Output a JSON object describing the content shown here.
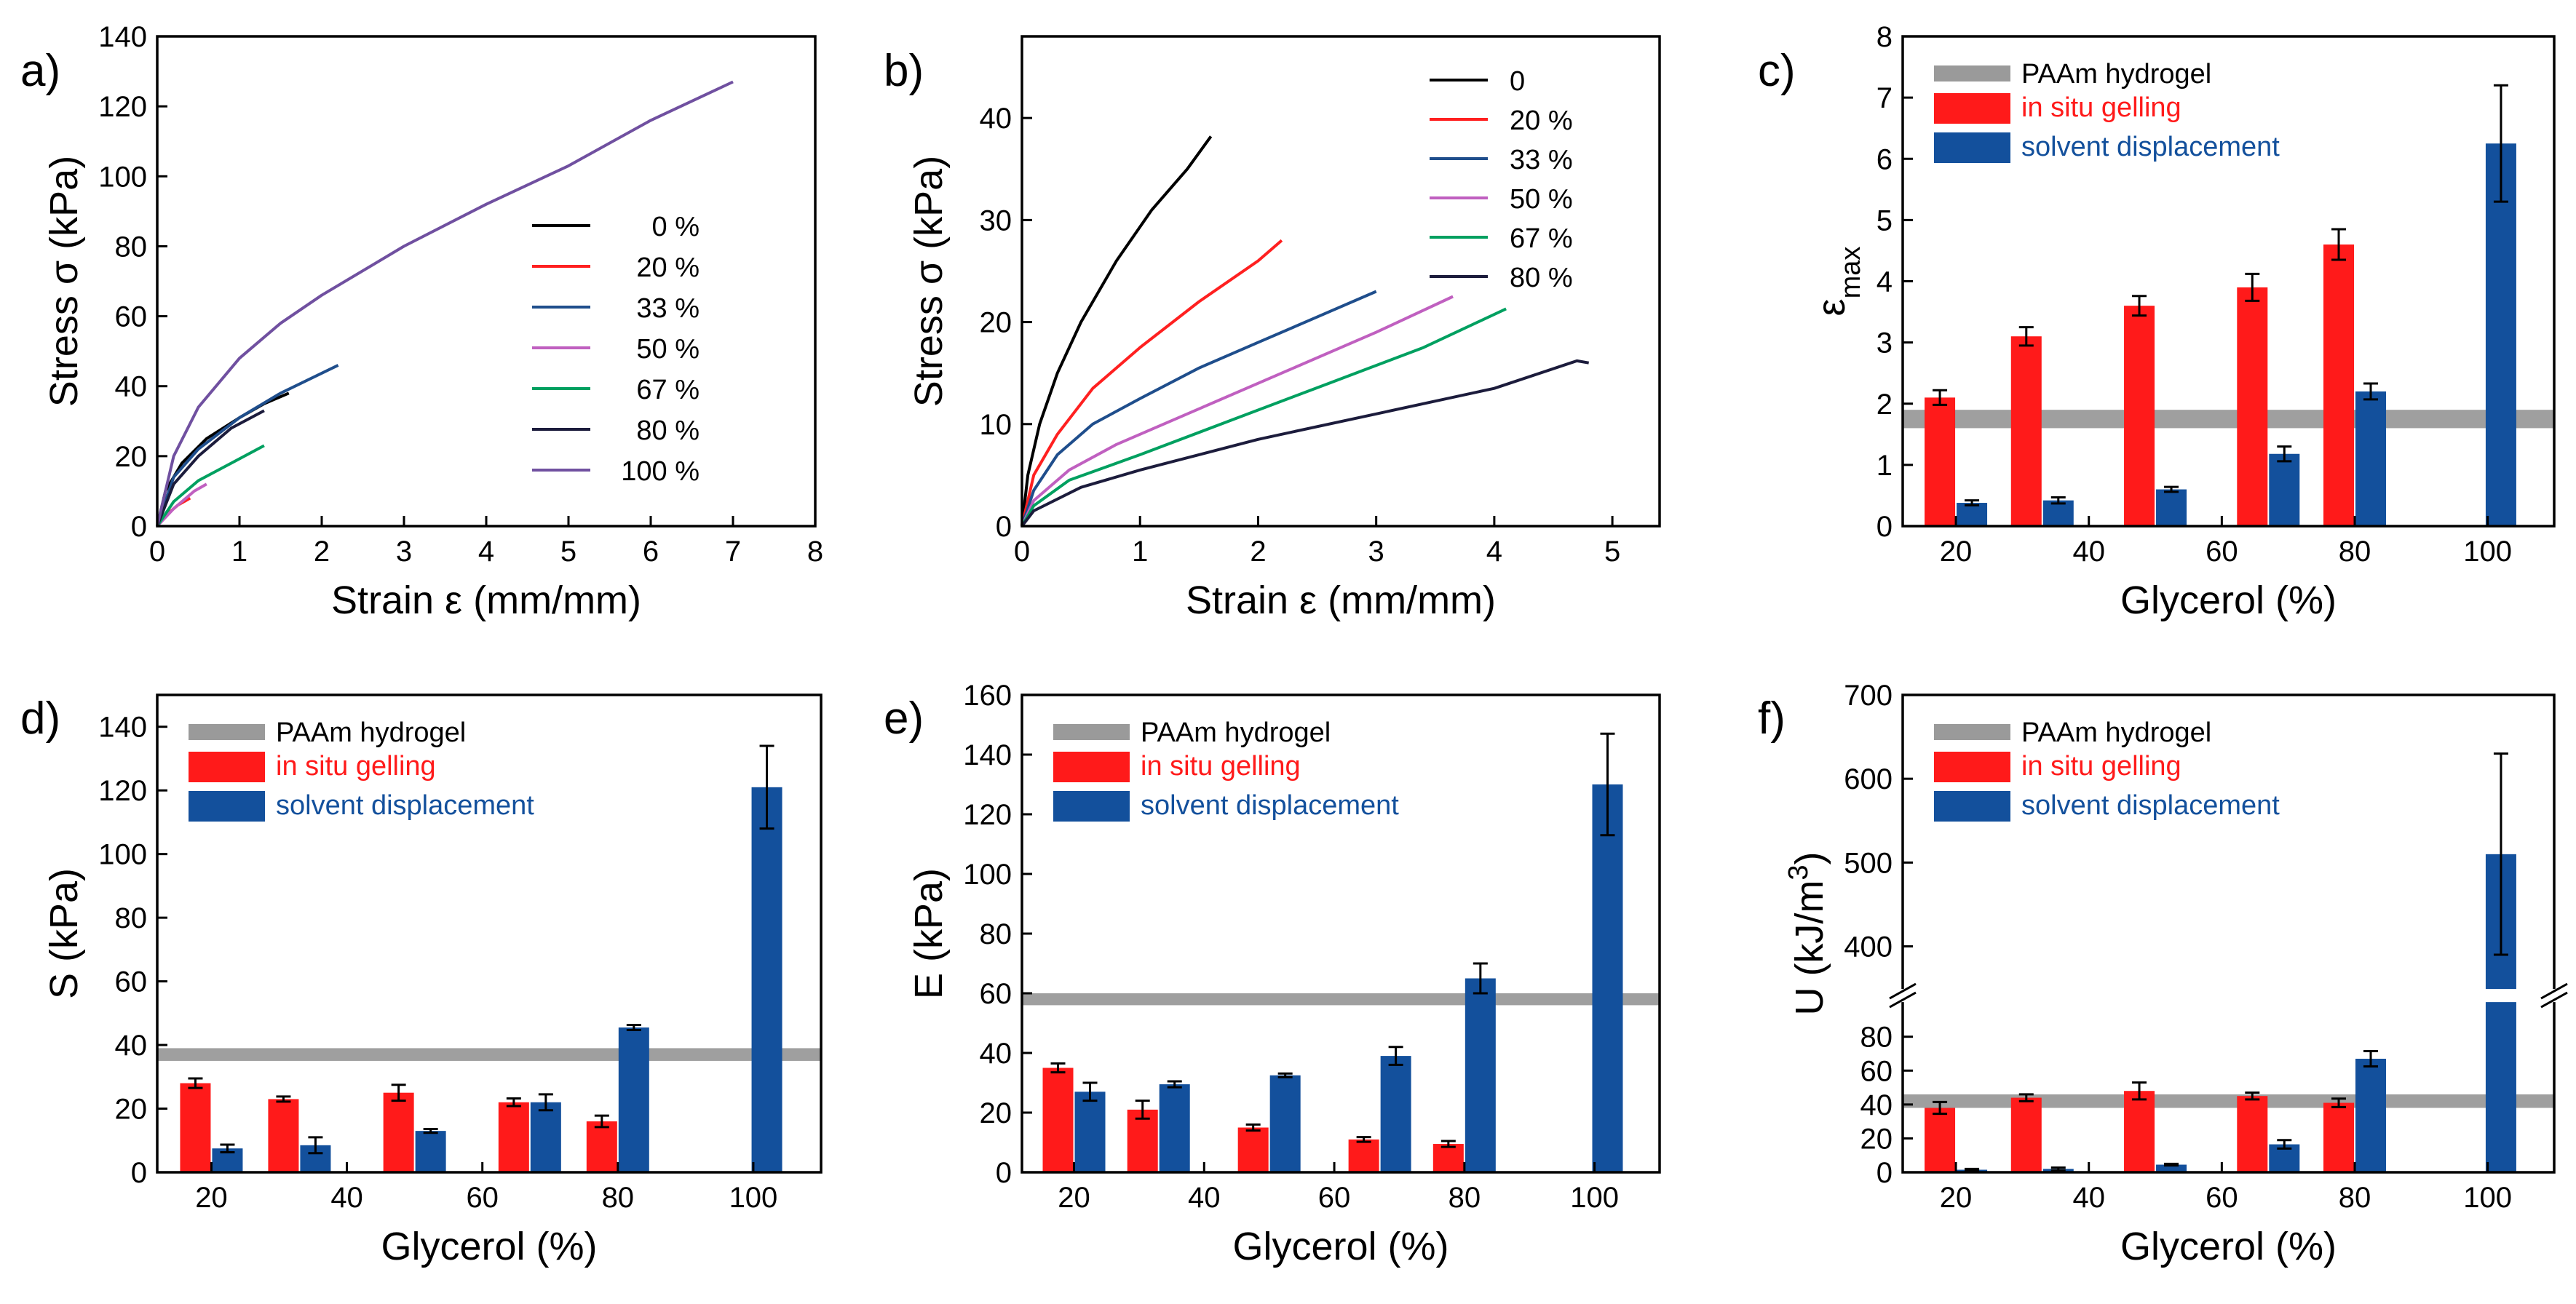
{
  "colors": {
    "red": "#ff1a1a",
    "blue": "#13509c",
    "gray": "#9a9a9a",
    "red_text": "#ff1a1a",
    "blue_text": "#13509c"
  },
  "chart_data": [
    {
      "id": "a",
      "panel_label": "a)",
      "type": "line",
      "xlabel": "Strain ε (mm/mm)",
      "ylabel": "Stress σ (kPa)",
      "xlim": [
        0,
        8
      ],
      "ylim": [
        0,
        140
      ],
      "xticks": [
        "0",
        "1",
        "2",
        "3",
        "4",
        "5",
        "6",
        "7",
        "8"
      ],
      "yticks": [
        "0",
        "20",
        "40",
        "60",
        "80",
        "100",
        "120",
        "140"
      ],
      "series": [
        {
          "name": "0 %",
          "color": "#000000",
          "x": [
            0,
            0.1,
            0.3,
            0.6,
            1.0,
            1.3,
            1.6
          ],
          "y": [
            0,
            10,
            18,
            25,
            31,
            35,
            38
          ]
        },
        {
          "name": "20 %",
          "color": "#ff2020",
          "x": [
            0,
            0.1,
            0.25,
            0.4
          ],
          "y": [
            0,
            3,
            6,
            8
          ]
        },
        {
          "name": "33 %",
          "color": "#1f4e8c",
          "x": [
            0,
            0.2,
            0.5,
            1.0,
            1.5,
            2.2
          ],
          "y": [
            0,
            14,
            22,
            31,
            38,
            46
          ]
        },
        {
          "name": "50 %",
          "color": "#c060c0",
          "x": [
            0,
            0.2,
            0.45,
            0.6
          ],
          "y": [
            0,
            5,
            10,
            12
          ]
        },
        {
          "name": "67 %",
          "color": "#00a060",
          "x": [
            0,
            0.2,
            0.5,
            0.9,
            1.3
          ],
          "y": [
            0,
            7,
            13,
            18,
            23
          ]
        },
        {
          "name": "80 %",
          "color": "#1c1c3c",
          "x": [
            0,
            0.2,
            0.5,
            0.9,
            1.3
          ],
          "y": [
            0,
            12,
            20,
            28,
            33
          ]
        },
        {
          "name": "100 %",
          "color": "#7050a0",
          "x": [
            0,
            0.2,
            0.5,
            1.0,
            1.5,
            2.0,
            3.0,
            4.0,
            5.0,
            6.0,
            7.0
          ],
          "y": [
            0,
            20,
            34,
            48,
            58,
            66,
            80,
            92,
            103,
            116,
            127
          ]
        }
      ]
    },
    {
      "id": "b",
      "panel_label": "b)",
      "type": "line",
      "xlabel": "Strain ε (mm/mm)",
      "ylabel": "Stress σ (kPa)",
      "xlim": [
        0,
        5.4
      ],
      "ylim": [
        0,
        48
      ],
      "xticks": [
        "0",
        "1",
        "2",
        "3",
        "4",
        "5"
      ],
      "yticks": [
        "0",
        "10",
        "20",
        "30",
        "40"
      ],
      "series": [
        {
          "name": "0",
          "color": "#000000",
          "x": [
            0,
            0.05,
            0.15,
            0.3,
            0.5,
            0.8,
            1.1,
            1.4,
            1.6
          ],
          "y": [
            0,
            5,
            10,
            15,
            20,
            26,
            31,
            35,
            38.2
          ]
        },
        {
          "name": "20 %",
          "color": "#ff2020",
          "x": [
            0,
            0.1,
            0.3,
            0.6,
            1.0,
            1.5,
            2.0,
            2.2
          ],
          "y": [
            0,
            5,
            9,
            13.5,
            17.5,
            22,
            26,
            28
          ]
        },
        {
          "name": "33 %",
          "color": "#1f4e8c",
          "x": [
            0,
            0.1,
            0.3,
            0.6,
            1.0,
            1.5,
            2.0,
            2.5,
            3.0
          ],
          "y": [
            0,
            3.5,
            7,
            10,
            12.5,
            15.5,
            18,
            20.5,
            23
          ]
        },
        {
          "name": "50 %",
          "color": "#c060c0",
          "x": [
            0,
            0.1,
            0.4,
            0.8,
            1.5,
            2.2,
            3.0,
            3.65
          ],
          "y": [
            0,
            2.5,
            5.5,
            8,
            11.5,
            15,
            19,
            22.5
          ]
        },
        {
          "name": "67 %",
          "color": "#00a060",
          "x": [
            0,
            0.1,
            0.4,
            1.0,
            1.8,
            2.6,
            3.4,
            4.1
          ],
          "y": [
            0,
            2,
            4.5,
            7,
            10.5,
            14,
            17.5,
            21.3
          ]
        },
        {
          "name": "80 %",
          "color": "#1c1c3c",
          "x": [
            0,
            0.1,
            0.5,
            1.0,
            2.0,
            3.0,
            4.0,
            4.7,
            4.8
          ],
          "y": [
            0,
            1.5,
            3.8,
            5.5,
            8.5,
            11,
            13.5,
            16.2,
            16.0
          ]
        }
      ]
    },
    {
      "id": "c",
      "panel_label": "c)",
      "type": "bar",
      "xlabel": "Glycerol (%)",
      "ylabel": "ε",
      "ylabel_sub": "max",
      "xlim": [
        12,
        110
      ],
      "ylim": [
        0,
        8
      ],
      "xticks": [
        "20",
        "40",
        "60",
        "80",
        "100"
      ],
      "yticks": [
        "0",
        "1",
        "2",
        "3",
        "4",
        "5",
        "6",
        "7",
        "8"
      ],
      "legend": [
        "PAAm hydrogel",
        "in situ gelling",
        "solvent displacement"
      ],
      "reference": {
        "name": "PAAm hydrogel",
        "value": 1.75,
        "band": 0.3
      },
      "series": [
        {
          "name": "in situ gelling",
          "x": [
            20,
            33,
            50,
            67,
            80
          ],
          "values": [
            2.1,
            3.1,
            3.6,
            3.9,
            4.6
          ],
          "err": [
            0.12,
            0.15,
            0.16,
            0.22,
            0.25
          ]
        },
        {
          "name": "solvent displacement",
          "x": [
            20,
            33,
            50,
            67,
            80,
            100
          ],
          "values": [
            0.38,
            0.42,
            0.6,
            1.18,
            2.2,
            6.25
          ],
          "err": [
            0.04,
            0.05,
            0.04,
            0.12,
            0.13,
            0.95
          ]
        }
      ]
    },
    {
      "id": "d",
      "panel_label": "d)",
      "type": "bar",
      "xlabel": "Glycerol (%)",
      "ylabel": "S (kPa)",
      "xlim": [
        12,
        110
      ],
      "ylim": [
        0,
        150
      ],
      "xticks": [
        "20",
        "40",
        "60",
        "80",
        "100"
      ],
      "yticks": [
        "0",
        "20",
        "40",
        "60",
        "80",
        "100",
        "120",
        "140"
      ],
      "legend": [
        "PAAm hydrogel",
        "in situ gelling",
        "solvent displacement"
      ],
      "reference": {
        "name": "PAAm hydrogel",
        "value": 37,
        "band": 4
      },
      "series": [
        {
          "name": "in situ gelling",
          "x": [
            20,
            33,
            50,
            67,
            80
          ],
          "values": [
            28,
            23,
            25,
            22,
            16
          ],
          "err": [
            1.5,
            0.8,
            2.5,
            1.2,
            1.8
          ]
        },
        {
          "name": "solvent displacement",
          "x": [
            20,
            33,
            50,
            67,
            80,
            100
          ],
          "values": [
            7.5,
            8.5,
            13,
            22,
            45.5,
            121
          ],
          "err": [
            1.2,
            2.5,
            0.6,
            2.5,
            0.8,
            13
          ]
        }
      ]
    },
    {
      "id": "e",
      "panel_label": "e)",
      "type": "bar",
      "xlabel": "Glycerol (%)",
      "ylabel": "E (kPa)",
      "xlim": [
        12,
        110
      ],
      "ylim": [
        0,
        160
      ],
      "xticks": [
        "20",
        "40",
        "60",
        "80",
        "100"
      ],
      "yticks": [
        "0",
        "20",
        "40",
        "60",
        "80",
        "100",
        "120",
        "140",
        "160"
      ],
      "legend": [
        "PAAm hydrogel",
        "in situ gelling",
        "solvent displacement"
      ],
      "reference": {
        "name": "PAAm hydrogel",
        "value": 58,
        "band": 4
      },
      "series": [
        {
          "name": "in situ gelling",
          "x": [
            20,
            33,
            50,
            67,
            80
          ],
          "values": [
            35,
            21,
            15,
            11,
            9.5
          ],
          "err": [
            1.5,
            3,
            1,
            0.8,
            1
          ]
        },
        {
          "name": "solvent displacement",
          "x": [
            20,
            33,
            50,
            67,
            80,
            100
          ],
          "values": [
            27,
            29.5,
            32.5,
            39,
            65,
            130
          ],
          "err": [
            3,
            1,
            0.6,
            3,
            5,
            17
          ]
        }
      ]
    },
    {
      "id": "f",
      "panel_label": "f)",
      "type": "bar",
      "xlabel": "Glycerol (%)",
      "ylabel": "U (kJ/m",
      "ylabel_sup": "3",
      "ylabel_end": ")",
      "xlim": [
        12,
        110
      ],
      "ylim": [
        0,
        700
      ],
      "axis_break": [
        100,
        350
      ],
      "xticks": [
        "20",
        "40",
        "60",
        "80",
        "100"
      ],
      "yticks": [
        "0",
        "20",
        "40",
        "60",
        "80",
        "400",
        "500",
        "600",
        "700"
      ],
      "legend": [
        "PAAm hydrogel",
        "in situ gelling",
        "solvent displacement"
      ],
      "reference": {
        "name": "PAAm hydrogel",
        "value": 42,
        "band": 8
      },
      "series": [
        {
          "name": "in situ gelling",
          "x": [
            20,
            33,
            50,
            67,
            80
          ],
          "values": [
            38,
            44,
            48,
            45,
            41
          ],
          "err": [
            3.5,
            2,
            5,
            2,
            2.5
          ]
        },
        {
          "name": "solvent displacement",
          "x": [
            20,
            33,
            50,
            67,
            80,
            100
          ],
          "values": [
            1.5,
            2,
            4.5,
            16.5,
            67,
            510
          ],
          "err": [
            0.5,
            0.8,
            0.5,
            2.5,
            4.5,
            120
          ]
        }
      ]
    }
  ]
}
